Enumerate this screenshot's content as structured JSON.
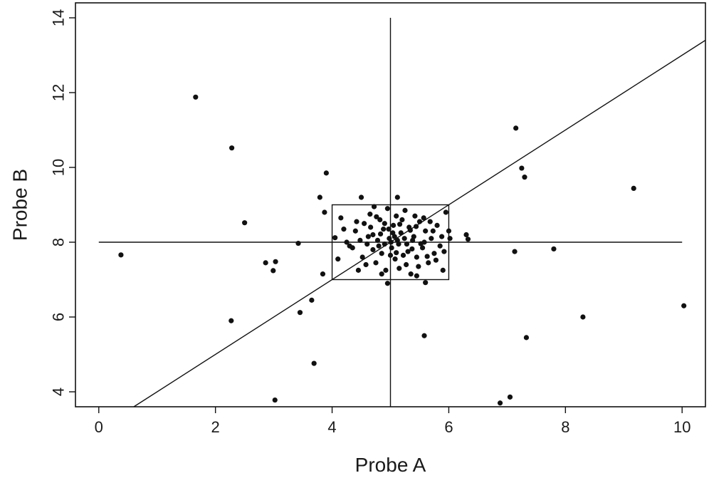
{
  "chart_data": {
    "type": "scatter",
    "xlabel": "Probe A",
    "ylabel": "Probe B",
    "xlim": [
      -0.4,
      10.4
    ],
    "ylim": [
      3.6,
      14.4
    ],
    "x_ticks": [
      0,
      2,
      4,
      6,
      8,
      10
    ],
    "y_ticks": [
      4,
      6,
      8,
      10,
      12,
      14
    ],
    "x_tick_labels": [
      "0",
      "2",
      "4",
      "6",
      "8",
      "10"
    ],
    "y_tick_labels": [
      "4",
      "6",
      "8",
      "10",
      "12",
      "14"
    ],
    "grid": false,
    "colors": {
      "points": "#111111",
      "lines": "#111111",
      "frame": "#111111"
    },
    "reference_lines": {
      "horizontal": {
        "y": 8,
        "x_from": 0,
        "x_to": 10
      },
      "vertical": {
        "x": 5,
        "y_from": 3.6,
        "y_to": 14
      },
      "diagonal": {
        "points": [
          [
            0.6,
            3.6
          ],
          [
            10.4,
            13.4
          ]
        ]
      }
    },
    "box": {
      "x_min": 4,
      "x_max": 6,
      "y_min": 7,
      "y_max": 9
    },
    "points": [
      [
        0.38,
        7.66
      ],
      [
        1.66,
        11.88
      ],
      [
        2.28,
        10.52
      ],
      [
        2.27,
        5.9
      ],
      [
        2.5,
        8.52
      ],
      [
        2.86,
        7.45
      ],
      [
        2.99,
        7.24
      ],
      [
        3.03,
        7.48
      ],
      [
        3.02,
        3.78
      ],
      [
        3.42,
        7.97
      ],
      [
        3.45,
        6.12
      ],
      [
        3.65,
        6.45
      ],
      [
        3.69,
        4.76
      ],
      [
        3.79,
        9.2
      ],
      [
        3.87,
        8.8
      ],
      [
        3.84,
        7.15
      ],
      [
        3.9,
        9.85
      ],
      [
        4.05,
        8.12
      ],
      [
        4.1,
        7.55
      ],
      [
        4.15,
        8.65
      ],
      [
        4.25,
        8.0
      ],
      [
        4.35,
        7.85
      ],
      [
        4.4,
        8.3
      ],
      [
        4.45,
        7.25
      ],
      [
        4.5,
        9.2
      ],
      [
        4.55,
        8.5
      ],
      [
        4.6,
        7.95
      ],
      [
        4.65,
        8.75
      ],
      [
        4.7,
        8.2
      ],
      [
        4.75,
        7.45
      ],
      [
        4.78,
        8.05
      ],
      [
        4.82,
        8.6
      ],
      [
        4.85,
        7.7
      ],
      [
        4.88,
        8.35
      ],
      [
        4.92,
        7.25
      ],
      [
        4.95,
        8.9
      ],
      [
        4.98,
        8.1
      ],
      [
        5.02,
        7.85
      ],
      [
        5.05,
        8.45
      ],
      [
        5.08,
        7.55
      ],
      [
        5.1,
        8.7
      ],
      [
        5.12,
        8.05
      ],
      [
        5.15,
        7.3
      ],
      [
        5.18,
        8.25
      ],
      [
        5.22,
        7.65
      ],
      [
        5.25,
        8.85
      ],
      [
        5.28,
        7.95
      ],
      [
        5.32,
        8.4
      ],
      [
        5.35,
        7.15
      ],
      [
        5.4,
        8.15
      ],
      [
        5.45,
        7.6
      ],
      [
        5.5,
        8.55
      ],
      [
        5.55,
        7.85
      ],
      [
        5.6,
        8.3
      ],
      [
        5.65,
        7.45
      ],
      [
        5.7,
        8.1
      ],
      [
        5.75,
        7.7
      ],
      [
        5.8,
        8.45
      ],
      [
        5.85,
        7.9
      ],
      [
        5.9,
        7.25
      ],
      [
        5.95,
        8.8
      ],
      [
        4.3,
        7.9
      ],
      [
        4.42,
        8.55
      ],
      [
        4.58,
        7.4
      ],
      [
        4.62,
        8.15
      ],
      [
        4.72,
        8.95
      ],
      [
        4.8,
        7.9
      ],
      [
        4.9,
        8.5
      ],
      [
        5.0,
        7.65
      ],
      [
        5.04,
        8.25
      ],
      [
        5.14,
        7.95
      ],
      [
        5.2,
        8.6
      ],
      [
        5.3,
        7.75
      ],
      [
        5.38,
        8.05
      ],
      [
        5.42,
        8.7
      ],
      [
        5.48,
        7.35
      ],
      [
        5.58,
        8.0
      ],
      [
        5.68,
        8.55
      ],
      [
        4.85,
        7.15
      ],
      [
        5.12,
        9.2
      ],
      [
        4.95,
        6.9
      ],
      [
        5.6,
        6.92
      ],
      [
        5.45,
        7.1
      ],
      [
        4.2,
        8.35
      ],
      [
        4.48,
        8.05
      ],
      [
        4.52,
        7.6
      ],
      [
        4.66,
        8.4
      ],
      [
        4.7,
        7.8
      ],
      [
        4.76,
        8.68
      ],
      [
        4.83,
        8.22
      ],
      [
        4.9,
        7.95
      ],
      [
        4.97,
        8.35
      ],
      [
        5.01,
        8.0
      ],
      [
        5.07,
        8.15
      ],
      [
        5.1,
        7.72
      ],
      [
        5.16,
        8.48
      ],
      [
        5.24,
        8.1
      ],
      [
        5.27,
        7.4
      ],
      [
        5.34,
        8.32
      ],
      [
        5.37,
        7.82
      ],
      [
        5.44,
        8.42
      ],
      [
        5.52,
        7.96
      ],
      [
        5.57,
        8.65
      ],
      [
        5.63,
        7.62
      ],
      [
        5.73,
        8.3
      ],
      [
        5.78,
        7.52
      ],
      [
        5.88,
        8.15
      ],
      [
        5.92,
        7.75
      ],
      [
        6.0,
        8.3
      ],
      [
        6.02,
        8.1
      ],
      [
        6.3,
        8.2
      ],
      [
        6.33,
        8.08
      ],
      [
        7.15,
        11.05
      ],
      [
        7.25,
        9.98
      ],
      [
        7.3,
        9.74
      ],
      [
        7.13,
        7.75
      ],
      [
        7.8,
        7.82
      ],
      [
        9.17,
        9.44
      ],
      [
        10.03,
        6.3
      ],
      [
        8.3,
        6.0
      ],
      [
        7.33,
        5.45
      ],
      [
        5.58,
        5.5
      ],
      [
        7.05,
        3.86
      ],
      [
        6.88,
        3.7
      ]
    ]
  }
}
